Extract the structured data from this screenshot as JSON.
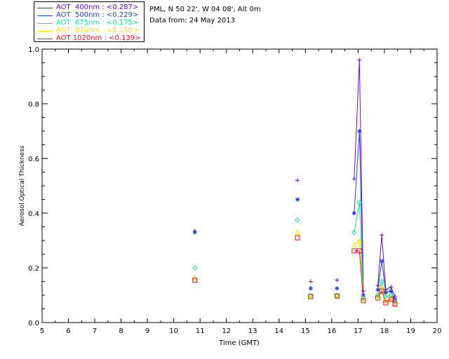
{
  "legend": [
    {
      "label": "AOT  400nm : <0.287>",
      "color": "#6a0ad0",
      "marker": "plus"
    },
    {
      "label": "AOT  500nm : <0.229>",
      "color": "#1f3fe0",
      "marker": "asterisk"
    },
    {
      "label": "AOT  675nm : <0.175>",
      "color": "#16e0a0",
      "marker": "diamond"
    },
    {
      "label": "AOT  870nm : <0.150>",
      "color": "#f7e400",
      "marker": "triangle"
    },
    {
      "label": "AOT 1020nm : <0.139>",
      "color": "#e0141e",
      "marker": "square"
    }
  ],
  "info": {
    "location": "PML, N 50 22', W 04 08', Alt 0m",
    "date": "Data from: 24 May 2013"
  },
  "chart_data": {
    "type": "line",
    "xlabel": "Time (GMT)",
    "ylabel": "Aerosol Optical Thickness",
    "xlim": [
      5,
      20
    ],
    "ylim": [
      0,
      1.0
    ],
    "xticks": [
      5,
      6,
      7,
      8,
      9,
      10,
      11,
      12,
      13,
      14,
      15,
      16,
      17,
      18,
      19,
      20
    ],
    "yticks": [
      0.0,
      0.2,
      0.4,
      0.6,
      0.8,
      1.0
    ],
    "ytick_labels": [
      "0.0",
      "0.2",
      "0.4",
      "0.6",
      "0.8",
      "1.0"
    ],
    "grid": false,
    "series": [
      {
        "name": "AOT  400nm : <0.287>",
        "color": "#6a0ad0",
        "marker": "plus",
        "points": [
          [
            10.8,
            0.335
          ],
          [
            14.7,
            0.52
          ],
          [
            15.2,
            0.15
          ],
          [
            16.2,
            0.155
          ],
          [
            16.85,
            0.525
          ],
          [
            17.05,
            0.96
          ],
          [
            17.2,
            0.115
          ],
          [
            17.75,
            0.135
          ],
          [
            17.9,
            0.32
          ],
          [
            18.05,
            0.12
          ],
          [
            18.25,
            0.13
          ],
          [
            18.4,
            0.095
          ]
        ],
        "lines": [
          [
            4,
            5,
            6
          ],
          [
            7,
            8,
            9,
            10,
            11
          ]
        ]
      },
      {
        "name": "AOT  500nm : <0.229>",
        "color": "#1f3fe0",
        "marker": "asterisk",
        "points": [
          [
            10.8,
            0.33
          ],
          [
            14.7,
            0.45
          ],
          [
            15.2,
            0.125
          ],
          [
            16.2,
            0.125
          ],
          [
            16.85,
            0.4
          ],
          [
            17.05,
            0.7
          ],
          [
            17.2,
            0.1
          ],
          [
            17.75,
            0.12
          ],
          [
            17.9,
            0.225
          ],
          [
            18.05,
            0.11
          ],
          [
            18.25,
            0.115
          ],
          [
            18.4,
            0.085
          ]
        ],
        "lines": [
          [
            4,
            5,
            6
          ],
          [
            7,
            8,
            9,
            10,
            11
          ]
        ]
      },
      {
        "name": "AOT  675nm : <0.175>",
        "color": "#16e0a0",
        "marker": "diamond",
        "points": [
          [
            10.8,
            0.2
          ],
          [
            14.7,
            0.375
          ],
          [
            15.2,
            0.1
          ],
          [
            16.2,
            0.1
          ],
          [
            16.85,
            0.33
          ],
          [
            17.05,
            0.44
          ],
          [
            17.2,
            0.09
          ],
          [
            17.75,
            0.1
          ],
          [
            17.9,
            0.15
          ],
          [
            18.05,
            0.095
          ],
          [
            18.25,
            0.1
          ],
          [
            18.4,
            0.075
          ]
        ],
        "lines": [
          [
            4,
            5,
            6
          ],
          [
            7,
            8,
            9,
            10,
            11
          ]
        ]
      },
      {
        "name": "AOT  870nm : <0.150>",
        "color": "#f7e400",
        "marker": "triangle",
        "points": [
          [
            10.8,
            0.165
          ],
          [
            14.7,
            0.33
          ],
          [
            15.2,
            0.098
          ],
          [
            16.2,
            0.1
          ],
          [
            16.85,
            0.285
          ],
          [
            17.05,
            0.3
          ],
          [
            17.2,
            0.085
          ],
          [
            17.75,
            0.095
          ],
          [
            17.9,
            0.13
          ],
          [
            18.05,
            0.08
          ],
          [
            18.25,
            0.09
          ],
          [
            18.4,
            0.07
          ]
        ],
        "lines": [
          [
            4,
            5,
            6
          ],
          [
            7,
            8,
            9,
            10,
            11
          ]
        ]
      },
      {
        "name": "AOT 1020nm : <0.139>",
        "color": "#e0141e",
        "marker": "square",
        "points": [
          [
            10.8,
            0.155
          ],
          [
            14.7,
            0.31
          ],
          [
            15.2,
            0.095
          ],
          [
            16.2,
            0.097
          ],
          [
            16.85,
            0.262
          ],
          [
            17.05,
            0.262
          ],
          [
            17.2,
            0.08
          ],
          [
            17.75,
            0.09
          ],
          [
            17.9,
            0.115
          ],
          [
            18.05,
            0.072
          ],
          [
            18.25,
            0.085
          ],
          [
            18.4,
            0.068
          ]
        ],
        "lines": [
          [
            4,
            5,
            6
          ],
          [
            7,
            8,
            9,
            10,
            11
          ]
        ]
      }
    ]
  }
}
